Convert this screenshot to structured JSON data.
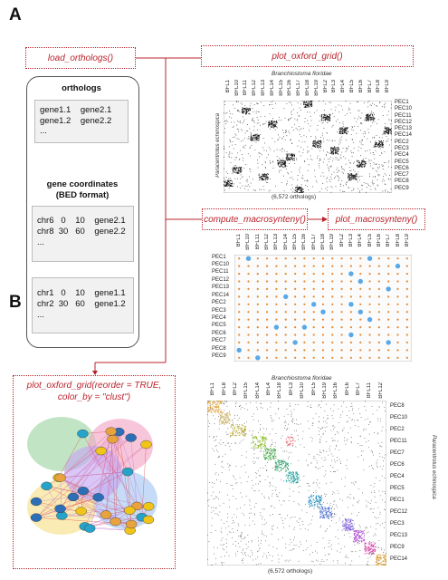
{
  "panels": {
    "a": "A",
    "b": "B"
  },
  "functions": {
    "load_orthologs": "load_orthologs()",
    "plot_oxford_grid": "plot_oxford_grid()",
    "compute_macrosynteny": "compute_macrosynteny()",
    "plot_macrosynteny": "plot_macrosynteny()",
    "plot_oxford_grid_reorder_line1": "plot_oxford_grid(reorder = TRUE,",
    "plot_oxford_grid_reorder_line2": "color_by = \"clust\")"
  },
  "inputs": {
    "orthologs_heading": "orthologs",
    "orthologs_rows": [
      "gene1.1    gene2.1",
      "gene1.2    gene2.2",
      "..."
    ],
    "coords_heading_line1": "gene coordinates",
    "coords_heading_line2": "(BED format)",
    "bed1_rows": [
      "chr6   0    10    gene2.1",
      "chr8  30   60    gene2.2",
      "..."
    ],
    "bed2_rows": [
      "chr1   0    10    gene1.1",
      "chr2  30   60    gene1.2",
      "..."
    ]
  },
  "grid_a": {
    "x_title": "Branchiostoma floridae",
    "y_title": "Paracentrotus echinospica",
    "caption": "(6,572 orthologs)",
    "x_labels": [
      "BFL1",
      "BFL10",
      "BFL11",
      "BFL12",
      "BFL13",
      "BFL14",
      "BFL15",
      "BFL16",
      "BFL17",
      "BFL18",
      "BFL19",
      "BFL2",
      "BFL3",
      "BFL4",
      "BFL5",
      "BFL6",
      "BFL7",
      "BFL8",
      "BFL9"
    ],
    "y_labels": [
      "PEC1",
      "PEC10",
      "PEC11",
      "PEC12",
      "PEC13",
      "PEC14",
      "PEC2",
      "PEC3",
      "PEC4",
      "PEC5",
      "PEC6",
      "PEC7",
      "PEC8",
      "PEC9"
    ]
  },
  "macrosynteny": {
    "x_labels": [
      "BFL1",
      "BFL10",
      "BFL11",
      "BFL12",
      "BFL13",
      "BFL14",
      "BFL15",
      "BFL16",
      "BFL17",
      "BFL18",
      "BFL19",
      "BFL2",
      "BFL3",
      "BFL4",
      "BFL5",
      "BFL6",
      "BFL7",
      "BFL8",
      "BFL9"
    ],
    "y_labels": [
      "PEC1",
      "PEC10",
      "PEC11",
      "PEC12",
      "PEC13",
      "PEC14",
      "PEC2",
      "PEC3",
      "PEC4",
      "PEC5",
      "PEC6",
      "PEC7",
      "PEC8",
      "PEC9"
    ],
    "significant": [
      [
        0,
        1
      ],
      [
        0,
        14
      ],
      [
        1,
        17
      ],
      [
        2,
        12
      ],
      [
        3,
        13
      ],
      [
        4,
        16
      ],
      [
        5,
        5
      ],
      [
        6,
        8
      ],
      [
        6,
        12
      ],
      [
        7,
        9
      ],
      [
        7,
        13
      ],
      [
        8,
        14
      ],
      [
        9,
        4
      ],
      [
        9,
        7
      ],
      [
        10,
        12
      ],
      [
        11,
        6
      ],
      [
        11,
        16
      ],
      [
        12,
        0
      ],
      [
        13,
        2
      ]
    ]
  },
  "grid_b": {
    "x_title": "Branchiostoma floridae",
    "y_title": "Paracentrotus echinospica",
    "caption": "(6,572 orthologs)",
    "x_labels": [
      "BFL1",
      "BFL8",
      "BFL2",
      "BFL15",
      "BFL14",
      "BFL4",
      "BFL18",
      "BFL3",
      "BFL10",
      "BFL5",
      "BFL19",
      "BFL16",
      "BFL6",
      "BFL7",
      "BFL11",
      "BFL12"
    ],
    "y_labels": [
      "PEC8",
      "PEC10",
      "PEC2",
      "PEC11",
      "PEC7",
      "PEC6",
      "PEC4",
      "PEC5",
      "PEC1",
      "PEC12",
      "PEC3",
      "PEC13",
      "PEC9",
      "PEC14"
    ],
    "cluster_colors": [
      "#d99a2b",
      "#c9b266",
      "#b5a82a",
      "#8fbf2c",
      "#4caf50",
      "#2e9e6b",
      "#27a5a0",
      "#2a8fc0",
      "#4a6fd0",
      "#7c5cd6",
      "#b04ad0",
      "#d64aa8"
    ]
  },
  "network": {
    "node_colors": [
      "#2d6fb6",
      "#f0c419",
      "#26a3c9",
      "#e8a33d"
    ],
    "hull_colors": [
      "#9fd7a5",
      "#f2a7c8",
      "#a7c8f2",
      "#f6e08a",
      "#c6a7f2"
    ]
  }
}
